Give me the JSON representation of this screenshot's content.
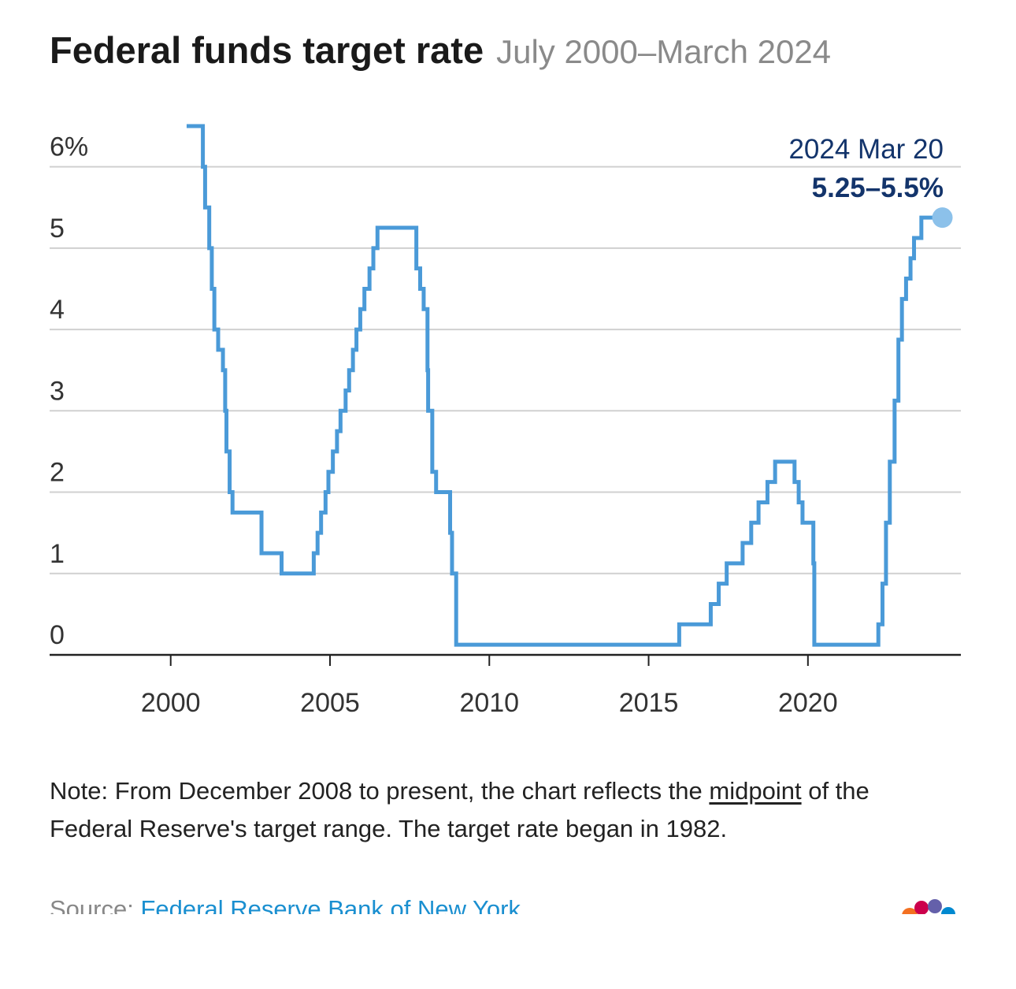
{
  "chart_data": {
    "type": "step",
    "title": "Federal funds target rate",
    "subtitle": "July 2000–March 2024",
    "color": "#4a9ad8",
    "marker_color": "#8cc1ea",
    "grid": true,
    "xlim": [
      1996.2,
      2024.8
    ],
    "ylim": [
      0,
      6.5
    ],
    "xticks": [
      2000,
      2005,
      2010,
      2015,
      2020
    ],
    "yticks": [
      0,
      1,
      2,
      3,
      4,
      5,
      {
        "value": 6,
        "label": "6%"
      }
    ],
    "x": [
      2000.5,
      2001.01,
      2001.08,
      2001.21,
      2001.29,
      2001.37,
      2001.49,
      2001.64,
      2001.71,
      2001.75,
      2001.85,
      2001.94,
      2002.85,
      2003.48,
      2004.49,
      2004.61,
      2004.72,
      2004.86,
      2004.95,
      2005.09,
      2005.22,
      2005.33,
      2005.49,
      2005.6,
      2005.72,
      2005.83,
      2005.95,
      2006.08,
      2006.24,
      2006.36,
      2006.49,
      2007.71,
      2007.83,
      2007.94,
      2008.06,
      2008.08,
      2008.21,
      2008.33,
      2008.77,
      2008.83,
      2008.96,
      2015.96,
      2016.95,
      2017.2,
      2017.45,
      2017.95,
      2018.22,
      2018.45,
      2018.73,
      2018.97,
      2019.58,
      2019.71,
      2019.83,
      2020.17,
      2020.2,
      2022.21,
      2022.34,
      2022.45,
      2022.57,
      2022.72,
      2022.84,
      2022.95,
      2023.08,
      2023.22,
      2023.33,
      2023.56,
      2024.22
    ],
    "values": [
      6.5,
      6.0,
      5.5,
      5.0,
      4.5,
      4.0,
      3.75,
      3.5,
      3.0,
      2.5,
      2.0,
      1.75,
      1.25,
      1.0,
      1.25,
      1.5,
      1.75,
      2.0,
      2.25,
      2.5,
      2.75,
      3.0,
      3.25,
      3.5,
      3.75,
      4.0,
      4.25,
      4.5,
      4.75,
      5.0,
      5.25,
      4.75,
      4.5,
      4.25,
      3.5,
      3.0,
      2.25,
      2.0,
      1.5,
      1.0,
      0.125,
      0.375,
      0.625,
      0.875,
      1.125,
      1.375,
      1.625,
      1.875,
      2.125,
      2.375,
      2.125,
      1.875,
      1.625,
      1.125,
      0.125,
      0.375,
      0.875,
      1.625,
      2.375,
      3.125,
      3.875,
      4.375,
      4.625,
      4.875,
      5.125,
      5.375,
      5.375
    ],
    "annotation": {
      "date": "2024 Mar 20",
      "value": "5.25–5.5%"
    },
    "note": {
      "before": "Note: From December 2008 to present, the chart reflects the",
      "link": "midpoint",
      "after": "of the Federal Reserve's target range. The target rate began in 1982."
    },
    "source": {
      "label": "Source:",
      "link": "Federal Reserve Bank of New York"
    }
  }
}
